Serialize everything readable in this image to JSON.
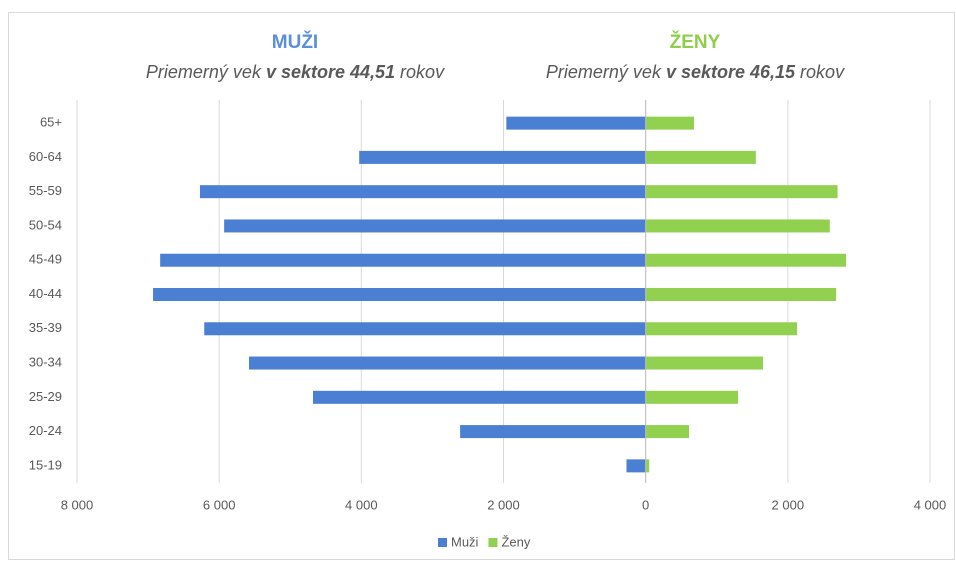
{
  "chart_data": {
    "type": "pyramid",
    "headings": [
      {
        "title": "MUŽI",
        "color": "#5b8fd6",
        "subtitle": [
          "Priemerný vek ",
          "v sektore 44,51",
          " rokov"
        ]
      },
      {
        "title": "ŽENY",
        "color": "#8fcd4a",
        "subtitle": [
          "Priemerný vek ",
          "v sektore 46,15",
          " rokov"
        ]
      }
    ],
    "categories": [
      "65+",
      "60-64",
      "55-59",
      "50-54",
      "45-49",
      "40-44",
      "35-39",
      "30-34",
      "25-29",
      "20-24",
      "15-19"
    ],
    "series": [
      {
        "name": "Muži",
        "color": "#4a7fd4",
        "values": [
          -1960,
          -4030,
          -6270,
          -5930,
          -6830,
          -6930,
          -6210,
          -5580,
          -4680,
          -2610,
          -270
        ]
      },
      {
        "name": "Ženy",
        "color": "#92d050",
        "values": [
          680,
          1550,
          2700,
          2590,
          2820,
          2680,
          2130,
          1650,
          1300,
          610,
          50
        ]
      }
    ],
    "xlim": [
      -8000,
      4000
    ],
    "xticks": [
      {
        "value": -8000,
        "label": "8 000"
      },
      {
        "value": -6000,
        "label": "6 000"
      },
      {
        "value": -4000,
        "label": "4 000"
      },
      {
        "value": -2000,
        "label": "2 000"
      },
      0,
      {
        "value": 2000,
        "label": "2 000"
      },
      {
        "value": 4000,
        "label": "4 000"
      }
    ],
    "grid": true,
    "legend": "bottom"
  }
}
